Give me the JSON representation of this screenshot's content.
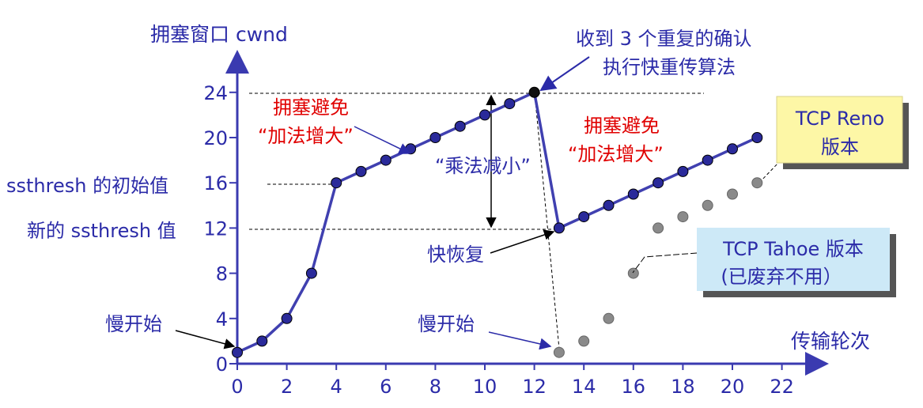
{
  "colors": {
    "axis": "#3a3ab0",
    "text_blue": "#2b2ba8",
    "text_red": "#e00000",
    "reno_line": "#4040b0",
    "reno_point": "#2a2a9a",
    "tahoe_point": "#8a8a8a",
    "reno_box": "#fdf7a6",
    "tahoe_box": "#cde9f7"
  },
  "labels": {
    "y_axis_title": "拥塞窗口 cwnd",
    "x_axis_title": "传输轮次",
    "ssthresh_initial": "ssthresh 的初始值",
    "ssthresh_new": "新的 ssthresh 值",
    "slow_start_1": "慢开始",
    "slow_start_2": "慢开始",
    "fast_recovery": "快恢复",
    "mult_decrease": "“乘法减小”",
    "congestion_avoid_1_line1": "拥塞避免",
    "congestion_avoid_1_line2": "“加法增大”",
    "congestion_avoid_2_line1": "拥塞避免",
    "congestion_avoid_2_line2": "“加法增大”",
    "triple_ack_line1": "收到 3 个重复的确认",
    "triple_ack_line2": "执行快重传算法",
    "reno_box_line1": "TCP Reno",
    "reno_box_line2": "版本",
    "tahoe_box_line1": "TCP Tahoe 版本",
    "tahoe_box_line2": "(已废弃不用）"
  },
  "chart_data": {
    "type": "line",
    "title": "",
    "xlabel": "传输轮次",
    "ylabel": "拥塞窗口 cwnd",
    "xlim": [
      0,
      23
    ],
    "ylim": [
      0,
      25
    ],
    "x_ticks": [
      0,
      2,
      4,
      6,
      8,
      10,
      12,
      14,
      16,
      18,
      20,
      22
    ],
    "y_ticks": [
      0,
      4,
      8,
      12,
      16,
      20,
      24
    ],
    "grid": false,
    "series": [
      {
        "name": "TCP Reno",
        "points": [
          [
            0,
            1
          ],
          [
            1,
            2
          ],
          [
            2,
            4
          ],
          [
            3,
            8
          ],
          [
            4,
            16
          ],
          [
            5,
            17
          ],
          [
            6,
            18
          ],
          [
            7,
            19
          ],
          [
            8,
            20
          ],
          [
            9,
            21
          ],
          [
            10,
            22
          ],
          [
            11,
            23
          ],
          [
            12,
            24
          ],
          [
            13,
            12
          ],
          [
            14,
            13
          ],
          [
            15,
            14
          ],
          [
            16,
            15
          ],
          [
            17,
            16
          ],
          [
            18,
            17
          ],
          [
            19,
            18
          ],
          [
            20,
            19
          ],
          [
            21,
            20
          ]
        ]
      },
      {
        "name": "TCP Tahoe",
        "points": [
          [
            13,
            1
          ],
          [
            14,
            2
          ],
          [
            15,
            4
          ],
          [
            16,
            8
          ],
          [
            17,
            12
          ],
          [
            18,
            13
          ],
          [
            19,
            14
          ],
          [
            20,
            15
          ],
          [
            21,
            16
          ]
        ]
      }
    ]
  }
}
